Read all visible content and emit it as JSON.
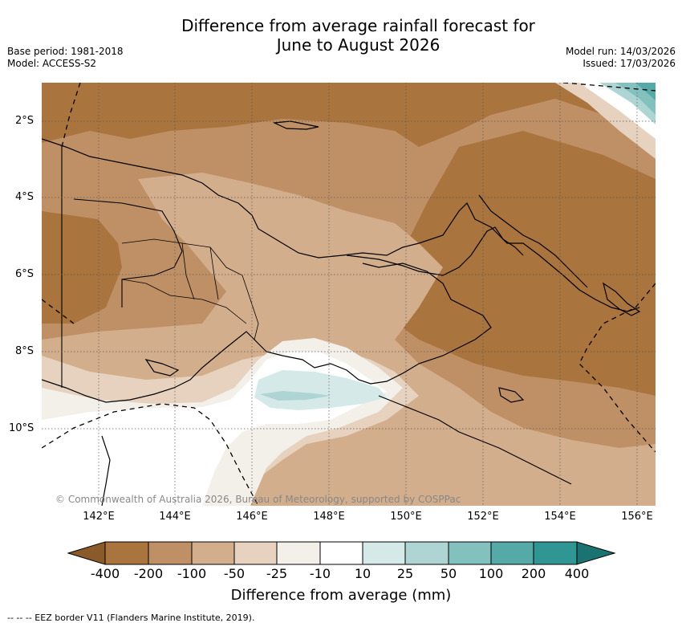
{
  "header": {
    "title_line1": "Difference from average rainfall forecast for",
    "title_line2": "June to August 2026",
    "base_period": "Base period: 1981-2018",
    "model": "Model: ACCESS-S2",
    "model_run": "Model run: 14/03/2026",
    "issued": "Issued: 17/03/2026"
  },
  "map": {
    "lat_labels": [
      "2°S",
      "4°S",
      "6°S",
      "8°S",
      "10°S"
    ],
    "lon_labels": [
      "142°E",
      "144°E",
      "146°E",
      "148°E",
      "150°E",
      "152°E",
      "154°E",
      "156°E"
    ],
    "copyright": "© Commonwealth of Australia 2026, Bureau of Meteorology, supported by COSPPac"
  },
  "legend": {
    "ticks": [
      "-400",
      "-200",
      "-100",
      "-50",
      "-25",
      "-10",
      "10",
      "25",
      "50",
      "100",
      "200",
      "400"
    ],
    "colors": [
      "#8a5a2a",
      "#aa743e",
      "#bf9066",
      "#d3ae8d",
      "#e6d2bf",
      "#f3efe9",
      "#ffffff",
      "#d6e9e9",
      "#aed5d4",
      "#82c1be",
      "#55a9a7",
      "#2f9693",
      "#1a7370"
    ],
    "label": "Difference from average (mm)"
  },
  "footnote": "--  --  -- EEZ border V11 (Flanders Marine Institute, 2019)."
}
